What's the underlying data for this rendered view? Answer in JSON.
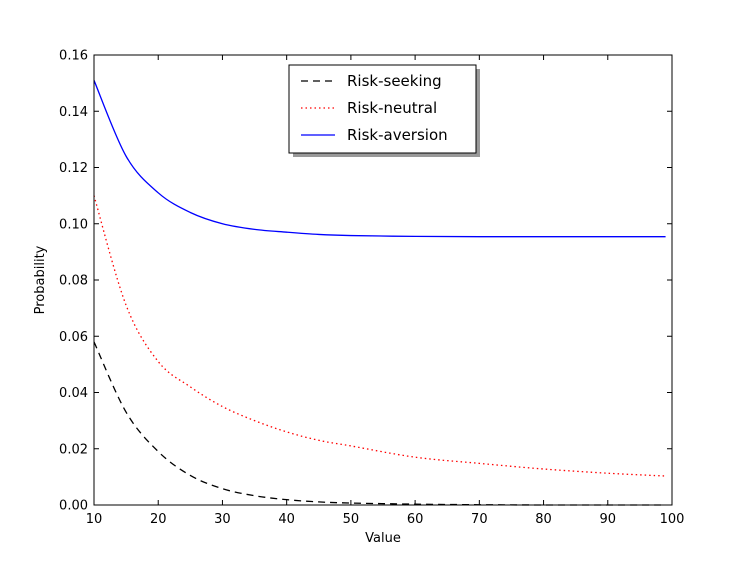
{
  "chart_data": {
    "type": "line",
    "title": "",
    "xlabel": "Value",
    "ylabel": "Probability",
    "xlim": [
      10,
      100
    ],
    "ylim": [
      0.0,
      0.16
    ],
    "grid": false,
    "legend_position": "top-center",
    "x_ticks": [
      10,
      20,
      30,
      40,
      50,
      60,
      70,
      80,
      90,
      100
    ],
    "x_tick_labels": [
      "10",
      "20",
      "30",
      "40",
      "50",
      "60",
      "70",
      "80",
      "90",
      "100"
    ],
    "y_ticks": [
      0.0,
      0.02,
      0.04,
      0.06,
      0.08,
      0.1,
      0.12,
      0.14,
      0.16
    ],
    "y_tick_labels": [
      "0.00",
      "0.02",
      "0.04",
      "0.06",
      "0.08",
      "0.10",
      "0.12",
      "0.14",
      "0.16"
    ],
    "series": [
      {
        "name": "Risk-seeking",
        "color": "#000000",
        "style": "dashed",
        "x": [
          10,
          15,
          20,
          25,
          30,
          35,
          40,
          45,
          50,
          60,
          70,
          80,
          90,
          99
        ],
        "y": [
          0.058,
          0.033,
          0.019,
          0.0105,
          0.0058,
          0.0033,
          0.0019,
          0.0011,
          0.0007,
          0.0003,
          0.0001,
          0.0,
          0.0,
          0.0
        ]
      },
      {
        "name": "Risk-neutral",
        "color": "#ff0000",
        "style": "dotted",
        "x": [
          10,
          15,
          20,
          25,
          30,
          35,
          40,
          45,
          50,
          60,
          70,
          80,
          90,
          99
        ],
        "y": [
          0.11,
          0.071,
          0.051,
          0.042,
          0.035,
          0.03,
          0.026,
          0.023,
          0.021,
          0.017,
          0.0148,
          0.0128,
          0.0113,
          0.0103
        ]
      },
      {
        "name": "Risk-aversion",
        "color": "#0000ff",
        "style": "solid",
        "x": [
          10,
          15,
          20,
          25,
          30,
          35,
          40,
          45,
          50,
          60,
          70,
          80,
          90,
          99
        ],
        "y": [
          0.151,
          0.124,
          0.111,
          0.104,
          0.1,
          0.098,
          0.097,
          0.0962,
          0.0958,
          0.0955,
          0.0954,
          0.0954,
          0.0954,
          0.0954
        ]
      }
    ]
  }
}
